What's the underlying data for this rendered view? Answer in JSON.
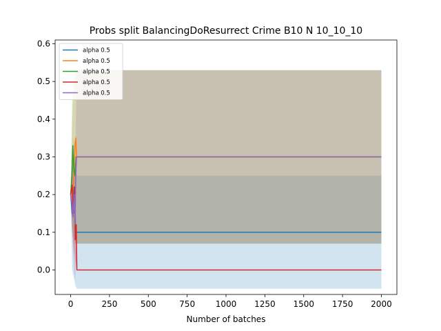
{
  "chart_data": {
    "type": "line",
    "title": "Probs split BalancingDoResurrect Crime B10 N 10_10_10",
    "xlabel": "Number of batches",
    "ylabel": "",
    "xlim": [
      -100,
      2100
    ],
    "ylim": [
      -0.065,
      0.61
    ],
    "xticks": [
      0,
      250,
      500,
      750,
      1000,
      1250,
      1500,
      1750,
      2000
    ],
    "yticks": [
      0.0,
      0.1,
      0.2,
      0.3,
      0.4,
      0.5,
      0.6
    ],
    "ytick_labels": [
      "0.0",
      "0.1",
      "0.2",
      "0.3",
      "0.4",
      "0.5",
      "0.6"
    ],
    "grid": false,
    "legend_position": "top-left",
    "series": [
      {
        "name": "alpha 0.5",
        "color": "#1f77b4",
        "points": [
          [
            0,
            0.2
          ],
          [
            10,
            0.15
          ],
          [
            20,
            0.22
          ],
          [
            30,
            0.12
          ],
          [
            38,
            0.1
          ],
          [
            2000,
            0.1
          ]
        ],
        "band": [
          [
            0,
            0.19,
            0.21
          ],
          [
            10,
            0.0,
            0.25
          ],
          [
            20,
            -0.02,
            0.3
          ],
          [
            30,
            -0.04,
            0.28
          ],
          [
            40,
            -0.05,
            0.25
          ],
          [
            2000,
            -0.05,
            0.25
          ]
        ]
      },
      {
        "name": "alpha 0.5",
        "color": "#ff7f0e",
        "points": [
          [
            0,
            0.2
          ],
          [
            10,
            0.18
          ],
          [
            20,
            0.25
          ],
          [
            28,
            0.33
          ],
          [
            33,
            0.35
          ],
          [
            38,
            0.3
          ],
          [
            2000,
            0.3
          ]
        ],
        "band": [
          [
            0,
            0.19,
            0.21
          ],
          [
            10,
            0.1,
            0.4
          ],
          [
            20,
            0.05,
            0.5
          ],
          [
            30,
            0.07,
            0.53
          ],
          [
            40,
            0.07,
            0.53
          ],
          [
            2000,
            0.07,
            0.53
          ]
        ]
      },
      {
        "name": "alpha 0.5",
        "color": "#2ca02c",
        "points": [
          [
            0,
            0.2
          ],
          [
            8,
            0.25
          ],
          [
            14,
            0.33
          ],
          [
            20,
            0.27
          ],
          [
            28,
            0.25
          ],
          [
            35,
            0.3
          ],
          [
            40,
            0.3
          ],
          [
            2000,
            0.3
          ]
        ],
        "band": [
          [
            0,
            0.19,
            0.21
          ],
          [
            10,
            0.1,
            0.45
          ],
          [
            20,
            0.08,
            0.5
          ],
          [
            30,
            0.07,
            0.53
          ],
          [
            40,
            0.07,
            0.53
          ],
          [
            2000,
            0.07,
            0.53
          ]
        ]
      },
      {
        "name": "alpha 0.5",
        "color": "#d62728",
        "points": [
          [
            0,
            0.2
          ],
          [
            10,
            0.225
          ],
          [
            18,
            0.15
          ],
          [
            25,
            0.22
          ],
          [
            30,
            0.08
          ],
          [
            36,
            0.12
          ],
          [
            40,
            0.0
          ],
          [
            2000,
            0.0
          ]
        ],
        "band": [
          [
            0,
            0.19,
            0.21
          ],
          [
            10,
            0.12,
            0.3
          ],
          [
            20,
            0.05,
            0.3
          ],
          [
            30,
            0.02,
            0.28
          ],
          [
            40,
            0.0,
            0.0
          ],
          [
            2000,
            0.0,
            0.0
          ]
        ]
      },
      {
        "name": "alpha 0.5",
        "color": "#9467bd",
        "points": [
          [
            0,
            0.2
          ],
          [
            8,
            0.18
          ],
          [
            15,
            0.14
          ],
          [
            22,
            0.2
          ],
          [
            28,
            0.12
          ],
          [
            33,
            0.25
          ],
          [
            38,
            0.3
          ],
          [
            2000,
            0.3
          ]
        ],
        "band": [
          [
            0,
            0.19,
            0.21
          ],
          [
            10,
            0.1,
            0.3
          ],
          [
            20,
            0.0,
            0.35
          ],
          [
            30,
            -0.03,
            0.3
          ],
          [
            40,
            0.07,
            0.53
          ],
          [
            2000,
            0.07,
            0.53
          ]
        ]
      }
    ]
  }
}
